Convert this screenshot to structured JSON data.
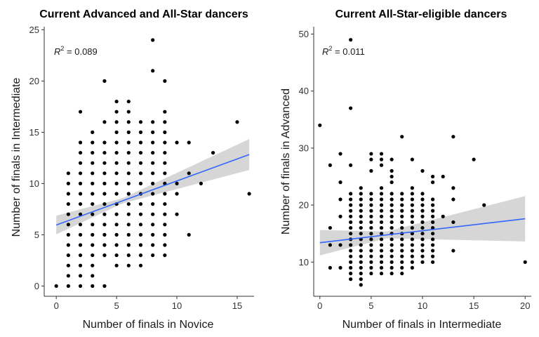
{
  "chart_data": [
    {
      "type": "scatter",
      "title": "Current Advanced and All-Star dancers",
      "xlabel": "Number of finals in Novice",
      "ylabel": "Number of finals in Intermediate",
      "xlim": [
        -1,
        16.4
      ],
      "ylim": [
        -1,
        25.3
      ],
      "xticks": [
        0,
        5,
        10,
        15
      ],
      "yticks": [
        0,
        5,
        10,
        15,
        20,
        25
      ],
      "xtick_labels": [
        "0",
        "5",
        "10",
        "15"
      ],
      "ytick_labels": [
        "0",
        "5",
        "10",
        "15",
        "20",
        "25"
      ],
      "annotation": {
        "prefix": "R",
        "sup": "2",
        "value": " = 0.089"
      },
      "fit": {
        "intercept": 5.95,
        "slope": 0.43,
        "x_range": [
          0,
          16
        ],
        "se_at_mean": 0.25,
        "se_growth": 0.12,
        "x_mean": 5.5
      },
      "points": [
        [
          0,
          0
        ],
        [
          1,
          0
        ],
        [
          1,
          1
        ],
        [
          1,
          2
        ],
        [
          1,
          3
        ],
        [
          1,
          4
        ],
        [
          1,
          5
        ],
        [
          1,
          6
        ],
        [
          1,
          7
        ],
        [
          1,
          8
        ],
        [
          1,
          9
        ],
        [
          1,
          10
        ],
        [
          1,
          11
        ],
        [
          2,
          0
        ],
        [
          2,
          1
        ],
        [
          2,
          2
        ],
        [
          2,
          3
        ],
        [
          2,
          4
        ],
        [
          2,
          5
        ],
        [
          2,
          6
        ],
        [
          2,
          7
        ],
        [
          2,
          8
        ],
        [
          2,
          9
        ],
        [
          2,
          10
        ],
        [
          2,
          11
        ],
        [
          2,
          12
        ],
        [
          2,
          13
        ],
        [
          2,
          14
        ],
        [
          2,
          17
        ],
        [
          3,
          0
        ],
        [
          3,
          1
        ],
        [
          3,
          2
        ],
        [
          3,
          3
        ],
        [
          3,
          4
        ],
        [
          3,
          5
        ],
        [
          3,
          6
        ],
        [
          3,
          7
        ],
        [
          3,
          8
        ],
        [
          3,
          9
        ],
        [
          3,
          10
        ],
        [
          3,
          11
        ],
        [
          3,
          12
        ],
        [
          3,
          13
        ],
        [
          3,
          14
        ],
        [
          3,
          15
        ],
        [
          4,
          0
        ],
        [
          4,
          3
        ],
        [
          4,
          4
        ],
        [
          4,
          5
        ],
        [
          4,
          6
        ],
        [
          4,
          7
        ],
        [
          4,
          8
        ],
        [
          4,
          9
        ],
        [
          4,
          10
        ],
        [
          4,
          11
        ],
        [
          4,
          12
        ],
        [
          4,
          13
        ],
        [
          4,
          14
        ],
        [
          4,
          16
        ],
        [
          4,
          20
        ],
        [
          5,
          2
        ],
        [
          5,
          3
        ],
        [
          5,
          4
        ],
        [
          5,
          5
        ],
        [
          5,
          6
        ],
        [
          5,
          7
        ],
        [
          5,
          8
        ],
        [
          5,
          9
        ],
        [
          5,
          10
        ],
        [
          5,
          11
        ],
        [
          5,
          12
        ],
        [
          5,
          13
        ],
        [
          5,
          14
        ],
        [
          5,
          15
        ],
        [
          5,
          16
        ],
        [
          5,
          17
        ],
        [
          5,
          18
        ],
        [
          6,
          2
        ],
        [
          6,
          3
        ],
        [
          6,
          4
        ],
        [
          6,
          5
        ],
        [
          6,
          6
        ],
        [
          6,
          7
        ],
        [
          6,
          8
        ],
        [
          6,
          9
        ],
        [
          6,
          10
        ],
        [
          6,
          11
        ],
        [
          6,
          12
        ],
        [
          6,
          13
        ],
        [
          6,
          14
        ],
        [
          6,
          15
        ],
        [
          6,
          16
        ],
        [
          6,
          17
        ],
        [
          6,
          18
        ],
        [
          7,
          2
        ],
        [
          7,
          3
        ],
        [
          7,
          4
        ],
        [
          7,
          5
        ],
        [
          7,
          6
        ],
        [
          7,
          7
        ],
        [
          7,
          8
        ],
        [
          7,
          9
        ],
        [
          7,
          10
        ],
        [
          7,
          11
        ],
        [
          7,
          12
        ],
        [
          7,
          13
        ],
        [
          7,
          14
        ],
        [
          7,
          15
        ],
        [
          7,
          16
        ],
        [
          8,
          3
        ],
        [
          8,
          4
        ],
        [
          8,
          5
        ],
        [
          8,
          6
        ],
        [
          8,
          7
        ],
        [
          8,
          8
        ],
        [
          8,
          9
        ],
        [
          8,
          10
        ],
        [
          8,
          11
        ],
        [
          8,
          12
        ],
        [
          8,
          13
        ],
        [
          8,
          14
        ],
        [
          8,
          15
        ],
        [
          8,
          16
        ],
        [
          8,
          21
        ],
        [
          8,
          24
        ],
        [
          9,
          3
        ],
        [
          9,
          4
        ],
        [
          9,
          5
        ],
        [
          9,
          6
        ],
        [
          9,
          7
        ],
        [
          9,
          8
        ],
        [
          9,
          9
        ],
        [
          9,
          10
        ],
        [
          9,
          11
        ],
        [
          9,
          12
        ],
        [
          9,
          13
        ],
        [
          9,
          14
        ],
        [
          9,
          15
        ],
        [
          9,
          16
        ],
        [
          9,
          17
        ],
        [
          9,
          20
        ],
        [
          10,
          7
        ],
        [
          10,
          9
        ],
        [
          10,
          10
        ],
        [
          10,
          14
        ],
        [
          11,
          5
        ],
        [
          11,
          11
        ],
        [
          11,
          14
        ],
        [
          12,
          10
        ],
        [
          13,
          13
        ],
        [
          15,
          16
        ],
        [
          16,
          9
        ]
      ]
    },
    {
      "type": "scatter",
      "title": "Current All-Star-eligible dancers",
      "xlabel": "Number of finals in Intermediate",
      "ylabel": "Number of finals in Advanced",
      "xlim": [
        -0.6,
        20.6
      ],
      "ylim": [
        4,
        51.3
      ],
      "xticks": [
        0,
        5,
        10,
        15,
        20
      ],
      "yticks": [
        10,
        20,
        30,
        40,
        50
      ],
      "xtick_labels": [
        "0",
        "5",
        "10",
        "15",
        "20"
      ],
      "ytick_labels": [
        "10",
        "20",
        "30",
        "40",
        "50"
      ],
      "annotation": {
        "prefix": "R",
        "sup": "2",
        "value": " = 0.011"
      },
      "fit": {
        "intercept": 13.4,
        "slope": 0.21,
        "x_range": [
          0,
          20
        ],
        "se_at_mean": 0.6,
        "se_growth": 0.25,
        "x_mean": 6.5
      },
      "points": [
        [
          0,
          34
        ],
        [
          1,
          9
        ],
        [
          1,
          13
        ],
        [
          1,
          16
        ],
        [
          1,
          27
        ],
        [
          2,
          9
        ],
        [
          2,
          13
        ],
        [
          2,
          18
        ],
        [
          2,
          21
        ],
        [
          2,
          24
        ],
        [
          2,
          29
        ],
        [
          3,
          7
        ],
        [
          3,
          8
        ],
        [
          3,
          9
        ],
        [
          3,
          10
        ],
        [
          3,
          11
        ],
        [
          3,
          12
        ],
        [
          3,
          13
        ],
        [
          3,
          14
        ],
        [
          3,
          15
        ],
        [
          3,
          16
        ],
        [
          3,
          17
        ],
        [
          3,
          18
        ],
        [
          3,
          19
        ],
        [
          3,
          20
        ],
        [
          3,
          21
        ],
        [
          3,
          22
        ],
        [
          3,
          27
        ],
        [
          3,
          37
        ],
        [
          3,
          49
        ],
        [
          4,
          6
        ],
        [
          4,
          7
        ],
        [
          4,
          8
        ],
        [
          4,
          9
        ],
        [
          4,
          10
        ],
        [
          4,
          11
        ],
        [
          4,
          12
        ],
        [
          4,
          13
        ],
        [
          4,
          14
        ],
        [
          4,
          15
        ],
        [
          4,
          16
        ],
        [
          4,
          17
        ],
        [
          4,
          18
        ],
        [
          4,
          19
        ],
        [
          4,
          20
        ],
        [
          4,
          21
        ],
        [
          4,
          22
        ],
        [
          4,
          23
        ],
        [
          5,
          8
        ],
        [
          5,
          9
        ],
        [
          5,
          10
        ],
        [
          5,
          11
        ],
        [
          5,
          12
        ],
        [
          5,
          13
        ],
        [
          5,
          14
        ],
        [
          5,
          15
        ],
        [
          5,
          16
        ],
        [
          5,
          17
        ],
        [
          5,
          18
        ],
        [
          5,
          19
        ],
        [
          5,
          20
        ],
        [
          5,
          21
        ],
        [
          5,
          22
        ],
        [
          5,
          26
        ],
        [
          5,
          28
        ],
        [
          5,
          29
        ],
        [
          6,
          8
        ],
        [
          6,
          9
        ],
        [
          6,
          10
        ],
        [
          6,
          11
        ],
        [
          6,
          12
        ],
        [
          6,
          13
        ],
        [
          6,
          14
        ],
        [
          6,
          15
        ],
        [
          6,
          16
        ],
        [
          6,
          17
        ],
        [
          6,
          18
        ],
        [
          6,
          19
        ],
        [
          6,
          20
        ],
        [
          6,
          21
        ],
        [
          6,
          22
        ],
        [
          6,
          23
        ],
        [
          6,
          27
        ],
        [
          6,
          28
        ],
        [
          6,
          29
        ],
        [
          7,
          8
        ],
        [
          7,
          9
        ],
        [
          7,
          10
        ],
        [
          7,
          11
        ],
        [
          7,
          12
        ],
        [
          7,
          13
        ],
        [
          7,
          14
        ],
        [
          7,
          15
        ],
        [
          7,
          16
        ],
        [
          7,
          17
        ],
        [
          7,
          18
        ],
        [
          7,
          19
        ],
        [
          7,
          20
        ],
        [
          7,
          21
        ],
        [
          7,
          22
        ],
        [
          7,
          24
        ],
        [
          7,
          25
        ],
        [
          7,
          26
        ],
        [
          7,
          28
        ],
        [
          8,
          8
        ],
        [
          8,
          9
        ],
        [
          8,
          10
        ],
        [
          8,
          11
        ],
        [
          8,
          12
        ],
        [
          8,
          13
        ],
        [
          8,
          14
        ],
        [
          8,
          15
        ],
        [
          8,
          16
        ],
        [
          8,
          17
        ],
        [
          8,
          18
        ],
        [
          8,
          19
        ],
        [
          8,
          20
        ],
        [
          8,
          21
        ],
        [
          8,
          22
        ],
        [
          8,
          32
        ],
        [
          9,
          9
        ],
        [
          9,
          10
        ],
        [
          9,
          11
        ],
        [
          9,
          12
        ],
        [
          9,
          13
        ],
        [
          9,
          14
        ],
        [
          9,
          15
        ],
        [
          9,
          16
        ],
        [
          9,
          17
        ],
        [
          9,
          18
        ],
        [
          9,
          19
        ],
        [
          9,
          20
        ],
        [
          9,
          21
        ],
        [
          9,
          22
        ],
        [
          9,
          23
        ],
        [
          9,
          28
        ],
        [
          10,
          10
        ],
        [
          10,
          11
        ],
        [
          10,
          12
        ],
        [
          10,
          13
        ],
        [
          10,
          14
        ],
        [
          10,
          15
        ],
        [
          10,
          16
        ],
        [
          10,
          17
        ],
        [
          10,
          18
        ],
        [
          10,
          19
        ],
        [
          10,
          20
        ],
        [
          10,
          21
        ],
        [
          10,
          22
        ],
        [
          10,
          26
        ],
        [
          11,
          10
        ],
        [
          11,
          11
        ],
        [
          11,
          12
        ],
        [
          11,
          13
        ],
        [
          11,
          14
        ],
        [
          11,
          15
        ],
        [
          11,
          16
        ],
        [
          11,
          17
        ],
        [
          11,
          18
        ],
        [
          11,
          19
        ],
        [
          11,
          20
        ],
        [
          11,
          21
        ],
        [
          11,
          24
        ],
        [
          11,
          25
        ],
        [
          12,
          18
        ],
        [
          12,
          25
        ],
        [
          13,
          12
        ],
        [
          13,
          17
        ],
        [
          13,
          21
        ],
        [
          13,
          23
        ],
        [
          13,
          32
        ],
        [
          15,
          28
        ],
        [
          16,
          20
        ],
        [
          20,
          10
        ]
      ]
    }
  ]
}
